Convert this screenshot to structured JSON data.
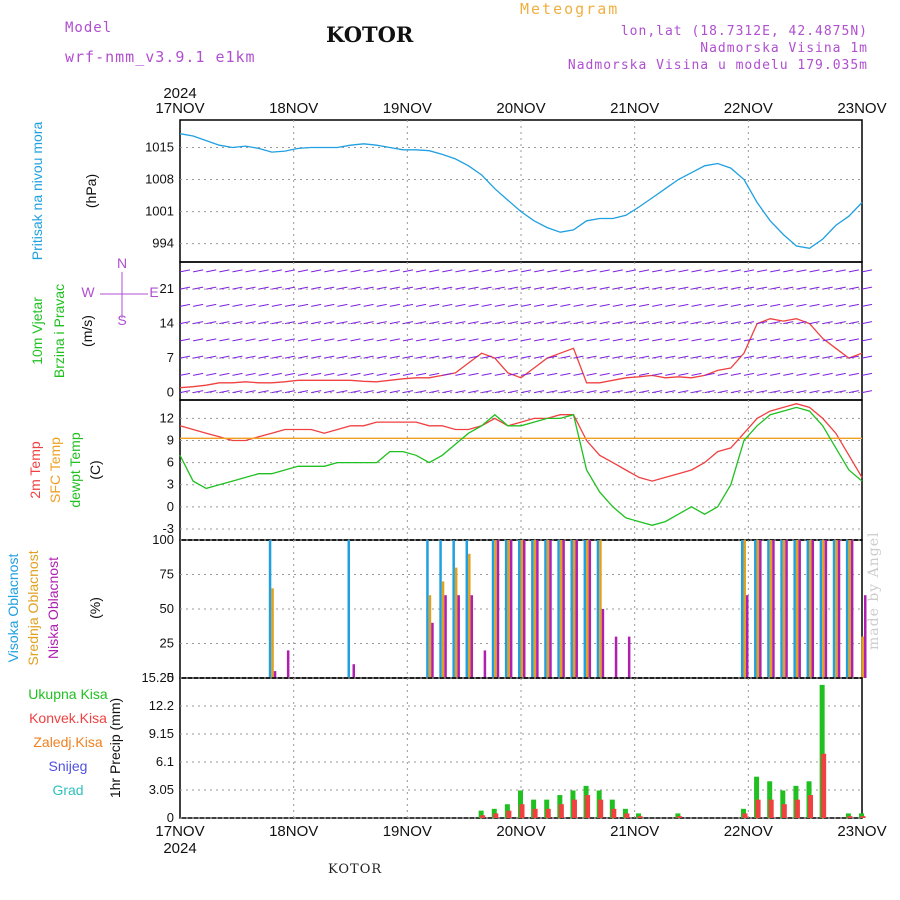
{
  "header": {
    "model_label": "Model",
    "model_name": "wrf-nmm_v3.9.1 e1km",
    "city": "KOTOR",
    "title": "Meteogram",
    "lonlat": "lon,lat (18.7312E, 42.4875N)",
    "altitude": "Nadmorska Visina 1m",
    "altitude_model": "Nadmorska Visina u modelu 179.035m",
    "year": "2024"
  },
  "footer": {
    "city": "KOTOR",
    "year": "2024"
  },
  "watermark": "made by Angel",
  "colors": {
    "pressure": "#20a0e0",
    "temp": "#f04040",
    "sfc_temp": "#f0a020",
    "dewpt": "#20c020",
    "high_cloud": "#20a0e0",
    "mid_cloud": "#e0a020",
    "low_cloud": "#b020b0",
    "precip_total": "#20c020",
    "precip_conv": "#f04040",
    "wind_line": "#f04040",
    "wind_barb": "#8020e0"
  },
  "chart_data": [
    {
      "type": "line",
      "panel": "pressure",
      "ylabel_main": "Pritisak na nivou mora",
      "ylabel_unit": "(hPa)",
      "x_labels": [
        "17NOV",
        "18NOV",
        "19NOV",
        "20NOV",
        "21NOV",
        "22NOV",
        "23NOV"
      ],
      "yticks": [
        994,
        1001,
        1008,
        1015
      ],
      "ylim": [
        990,
        1021
      ],
      "grid": true,
      "series": [
        {
          "values": [
            1018,
            1017.5,
            1016.5,
            1015.5,
            1015,
            1015.3,
            1014.8,
            1014,
            1014.2,
            1014.8,
            1015,
            1015,
            1015,
            1015.5,
            1015.8,
            1015.5,
            1015,
            1014.5,
            1014.5,
            1014.3,
            1013.5,
            1012.5,
            1011,
            1009,
            1006,
            1003.5,
            1001,
            999,
            997.5,
            996.5,
            997,
            999,
            999.5,
            999.5,
            1000.2,
            1002,
            1004,
            1006,
            1008,
            1009.5,
            1011,
            1011.5,
            1010.5,
            1008,
            1003,
            999,
            996,
            993.5,
            993,
            995,
            998,
            1000,
            1003
          ]
        }
      ]
    },
    {
      "type": "line",
      "panel": "wind",
      "ylabel_main": "10m Vjetar",
      "ylabel_sub": "Brzina i Pravac",
      "ylabel_unit": "(m/s)",
      "compass_n": "N",
      "compass_s": "S",
      "compass_w": "W",
      "compass_e": "E",
      "yticks": [
        0,
        7,
        14,
        21
      ],
      "ylim": [
        -1.5,
        26.5
      ],
      "grid": true,
      "series": [
        {
          "values": [
            1,
            1.2,
            1.5,
            2,
            2,
            2.2,
            2,
            2,
            2.2,
            2.5,
            2.5,
            2.5,
            2.5,
            2.5,
            2.3,
            2.2,
            2.5,
            2.8,
            3,
            3,
            3.5,
            4,
            6,
            8,
            7,
            4,
            3,
            5,
            7,
            8,
            9,
            2,
            2,
            2.5,
            3,
            3.2,
            3.5,
            3,
            3.2,
            3,
            3.5,
            4.5,
            5,
            8,
            14,
            15,
            14.5,
            15,
            14,
            11,
            9,
            7,
            8
          ]
        }
      ]
    },
    {
      "type": "line",
      "panel": "temperature",
      "ylabel_main": "2m Temp",
      "ylabel_sub": "SFC Temp",
      "ylabel_sub2": "dewpt Temp",
      "ylabel_unit": "(C)",
      "yticks": [
        -3,
        0,
        3,
        6,
        9,
        12
      ],
      "ylim": [
        -4.5,
        14.5
      ],
      "grid": true,
      "series": [
        {
          "values": [
            11,
            10.5,
            10,
            9.5,
            9,
            9,
            9.5,
            10,
            10.5,
            10.5,
            10.5,
            10,
            10.5,
            11,
            11,
            11.5,
            11.5,
            11.5,
            11.5,
            11,
            11,
            10.5,
            10.5,
            11,
            12,
            11,
            11.5,
            12,
            12,
            12.5,
            12.5,
            9,
            7,
            6,
            5,
            4,
            3.5,
            4,
            4.5,
            5,
            6,
            7.5,
            8,
            10,
            12,
            13,
            13.5,
            14,
            13.5,
            12,
            10,
            7,
            4
          ]
        },
        {
          "values": [
            9.3,
            9.3,
            9.3,
            9.3,
            9.3,
            9.3,
            9.3,
            9.3,
            9.3,
            9.3,
            9.3,
            9.3,
            9.3,
            9.3,
            9.3,
            9.3,
            9.3,
            9.3,
            9.3,
            9.3,
            9.3,
            9.3,
            9.3,
            9.3,
            9.3,
            9.3,
            9.3,
            9.3,
            9.3,
            9.3,
            9.3,
            9.3,
            9.3,
            9.3,
            9.3,
            9.3,
            9.3,
            9.3,
            9.3,
            9.3,
            9.3,
            9.3,
            9.3,
            9.3,
            9.3,
            9.3,
            9.3,
            9.3,
            9.3,
            9.3,
            9.3,
            9.3,
            9.3
          ]
        },
        {
          "values": [
            7,
            3.5,
            2.5,
            3,
            3.5,
            4,
            4.5,
            4.5,
            5,
            5.5,
            5.5,
            5.5,
            6,
            6,
            6,
            6,
            7.5,
            7.5,
            7,
            6,
            7,
            8.5,
            10,
            11,
            12.5,
            11,
            11,
            11.5,
            12,
            12,
            12.5,
            5,
            2,
            0,
            -1.5,
            -2,
            -2.5,
            -2,
            -1,
            0,
            -1,
            0,
            3,
            9,
            11,
            12.5,
            13,
            13.5,
            13,
            11,
            8,
            5,
            3.5
          ]
        }
      ]
    },
    {
      "type": "bar",
      "panel": "clouds",
      "ylabel_main": "Visoka Oblacnost",
      "ylabel_sub": "Srednja Oblacnost",
      "ylabel_sub2": "Niska Oblacnost",
      "ylabel_unit": "(%)",
      "yticks": [
        0,
        25,
        50,
        75,
        100
      ],
      "ylim": [
        0,
        100
      ],
      "grid": true,
      "series": [
        {
          "values": [
            0,
            0,
            0,
            0,
            0,
            0,
            0,
            100,
            0,
            0,
            0,
            0,
            0,
            100,
            0,
            0,
            0,
            0,
            0,
            100,
            100,
            100,
            100,
            0,
            100,
            100,
            100,
            100,
            100,
            100,
            100,
            100,
            100,
            0,
            0,
            0,
            0,
            0,
            0,
            0,
            0,
            0,
            0,
            100,
            100,
            100,
            100,
            100,
            100,
            100,
            100,
            100,
            0
          ]
        },
        {
          "values": [
            0,
            0,
            0,
            0,
            0,
            0,
            0,
            65,
            0,
            0,
            0,
            0,
            0,
            0,
            0,
            0,
            0,
            0,
            0,
            60,
            70,
            80,
            90,
            0,
            100,
            100,
            100,
            100,
            100,
            100,
            100,
            100,
            100,
            0,
            0,
            0,
            0,
            0,
            0,
            0,
            0,
            0,
            0,
            100,
            100,
            100,
            100,
            100,
            100,
            100,
            100,
            100,
            30
          ]
        },
        {
          "values": [
            0,
            0,
            0,
            0,
            0,
            0,
            0,
            5,
            20,
            0,
            0,
            0,
            0,
            10,
            0,
            0,
            0,
            0,
            0,
            40,
            60,
            60,
            60,
            20,
            100,
            100,
            100,
            100,
            100,
            100,
            100,
            100,
            50,
            30,
            30,
            0,
            0,
            0,
            0,
            0,
            0,
            0,
            0,
            60,
            100,
            100,
            100,
            100,
            100,
            100,
            100,
            100,
            60
          ]
        }
      ]
    },
    {
      "type": "bar",
      "panel": "precip",
      "ylabel_main": "1hr Precip",
      "ylabel_unit": "(mm)",
      "legend": [
        "Ukupna Kisa",
        "Konvek.Kisa",
        "Zaledj.Kisa",
        "Snijeg",
        "Grad"
      ],
      "legend_colors": [
        "#20c020",
        "#f04040",
        "#f08020",
        "#5050e0",
        "#30c0c0"
      ],
      "yticks": [
        0,
        3.05,
        6.1,
        9.15,
        12.2,
        15.25
      ],
      "ylim": [
        0,
        15.25
      ],
      "grid": true,
      "series": [
        {
          "values": [
            0,
            0,
            0,
            0,
            0,
            0,
            0,
            0,
            0,
            0,
            0,
            0,
            0,
            0,
            0,
            0,
            0,
            0,
            0,
            0,
            0,
            0,
            0,
            0.8,
            1,
            1.5,
            3,
            2,
            2,
            2.5,
            3,
            3.5,
            3,
            2,
            1,
            0.5,
            0,
            0,
            0.5,
            0,
            0,
            0,
            0,
            1,
            4.5,
            4,
            3,
            3.5,
            4,
            14.5,
            0,
            0.5,
            0.5
          ]
        },
        {
          "values": [
            0,
            0,
            0,
            0,
            0,
            0,
            0,
            0,
            0,
            0,
            0,
            0,
            0,
            0,
            0,
            0,
            0,
            0,
            0,
            0,
            0,
            0,
            0,
            0.3,
            0.5,
            0.8,
            1.5,
            1,
            1,
            1.5,
            2,
            2.5,
            2,
            1,
            0.5,
            0.2,
            0,
            0,
            0.2,
            0,
            0,
            0,
            0,
            0.5,
            2,
            2,
            1.5,
            2,
            2.5,
            7,
            0,
            0.2,
            0.2
          ]
        }
      ]
    }
  ]
}
